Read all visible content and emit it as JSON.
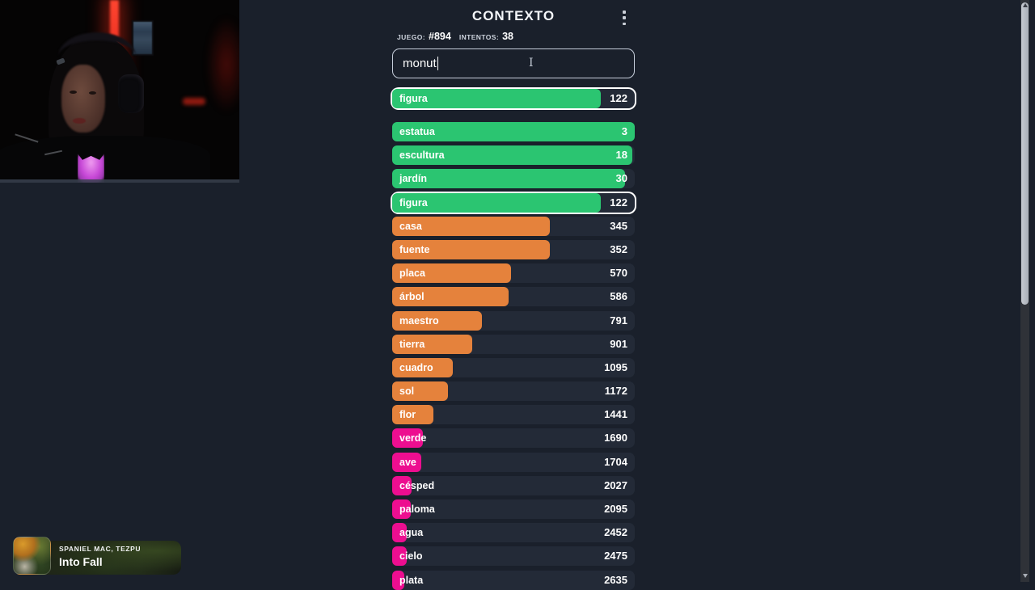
{
  "header": {
    "title": "CONTEXTO",
    "menu_icon": "kebab-menu"
  },
  "game_info": {
    "game_label": "JUEGO:",
    "game_value": "#894",
    "attempts_label": "INTENTOS:",
    "attempts_value": "38"
  },
  "search": {
    "value": "monut"
  },
  "colors": {
    "green": "#2bc571",
    "orange": "#e5823c",
    "pink": "#ed0e90",
    "row_bg": "#232a37",
    "highlight_border": "#ffffff",
    "page_bg": "#1a202b"
  },
  "current_guess": {
    "word": "figura",
    "rank": "122",
    "color": "green",
    "width_pct": 86,
    "highlighted": true
  },
  "guesses": [
    {
      "word": "estatua",
      "rank": "3",
      "color": "green",
      "width_pct": 100,
      "highlighted": false
    },
    {
      "word": "escultura",
      "rank": "18",
      "color": "green",
      "width_pct": 99,
      "highlighted": false
    },
    {
      "word": "jardín",
      "rank": "30",
      "color": "green",
      "width_pct": 96,
      "highlighted": false
    },
    {
      "word": "figura",
      "rank": "122",
      "color": "green",
      "width_pct": 86,
      "highlighted": true
    },
    {
      "word": "casa",
      "rank": "345",
      "color": "orange",
      "width_pct": 65,
      "highlighted": false
    },
    {
      "word": "fuente",
      "rank": "352",
      "color": "orange",
      "width_pct": 65,
      "highlighted": false
    },
    {
      "word": "placa",
      "rank": "570",
      "color": "orange",
      "width_pct": 49,
      "highlighted": false
    },
    {
      "word": "árbol",
      "rank": "586",
      "color": "orange",
      "width_pct": 48,
      "highlighted": false
    },
    {
      "word": "maestro",
      "rank": "791",
      "color": "orange",
      "width_pct": 37,
      "highlighted": false
    },
    {
      "word": "tierra",
      "rank": "901",
      "color": "orange",
      "width_pct": 33,
      "highlighted": false
    },
    {
      "word": "cuadro",
      "rank": "1095",
      "color": "orange",
      "width_pct": 25,
      "highlighted": false
    },
    {
      "word": "sol",
      "rank": "1172",
      "color": "orange",
      "width_pct": 23,
      "highlighted": false
    },
    {
      "word": "flor",
      "rank": "1441",
      "color": "orange",
      "width_pct": 17,
      "highlighted": false
    },
    {
      "word": "verde",
      "rank": "1690",
      "color": "pink",
      "width_pct": 12.5,
      "highlighted": false
    },
    {
      "word": "ave",
      "rank": "1704",
      "color": "pink",
      "width_pct": 12,
      "highlighted": false
    },
    {
      "word": "césped",
      "rank": "2027",
      "color": "pink",
      "width_pct": 8,
      "highlighted": false
    },
    {
      "word": "paloma",
      "rank": "2095",
      "color": "pink",
      "width_pct": 7.5,
      "highlighted": false
    },
    {
      "word": "agua",
      "rank": "2452",
      "color": "pink",
      "width_pct": 6,
      "highlighted": false
    },
    {
      "word": "cielo",
      "rank": "2475",
      "color": "pink",
      "width_pct": 6,
      "highlighted": false
    },
    {
      "word": "plata",
      "rank": "2635",
      "color": "pink",
      "width_pct": 5,
      "highlighted": false
    }
  ],
  "now_playing": {
    "artists": "SPANIEL MAC, TEZPU",
    "title": "Into Fall",
    "art_icon": "autumn-forest-album-art"
  }
}
